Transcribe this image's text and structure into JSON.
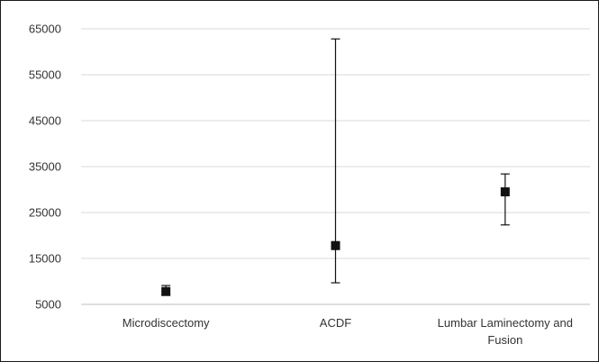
{
  "chart_data": {
    "type": "scatter",
    "title": "",
    "xlabel": "",
    "ylabel": "",
    "categories": [
      "Microdiscectomy",
      "ACDF",
      "Lumbar Laminectomy and Fusion"
    ],
    "category_lines": [
      [
        "Microdiscectomy"
      ],
      [
        "ACDF"
      ],
      [
        "Lumbar Laminectomy and",
        "Fusion"
      ]
    ],
    "series": [
      {
        "points": [
          {
            "category": "Microdiscectomy",
            "value": 7800,
            "low": 7000,
            "high": 9100
          },
          {
            "category": "ACDF",
            "value": 17800,
            "low": 9700,
            "high": 62800
          },
          {
            "category": "Lumbar Laminectomy and Fusion",
            "value": 29500,
            "low": 22300,
            "high": 33400
          }
        ]
      }
    ],
    "yticks": [
      "5000",
      "15000",
      "25000",
      "35000",
      "45000",
      "55000",
      "65000"
    ],
    "ylim": [
      5000,
      65000
    ],
    "grid": true,
    "legend": "none",
    "colors": {
      "marker": "#111111",
      "grid": "#d9d9d9",
      "axis": "#bfbfbf",
      "text": "#333333"
    }
  }
}
